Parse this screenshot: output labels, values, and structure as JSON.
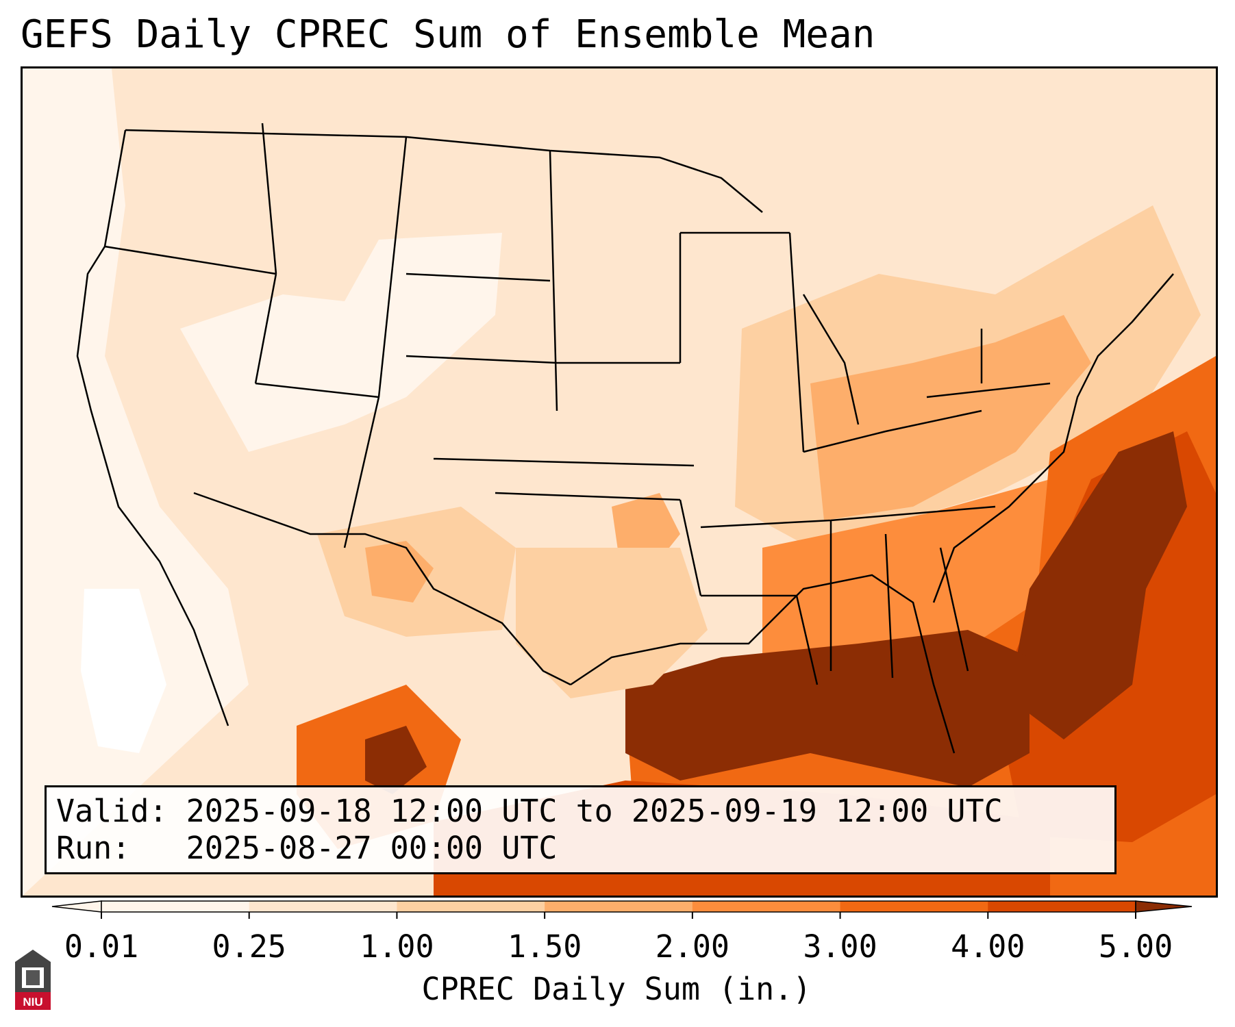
{
  "title": "GEFS Daily CPREC Sum of Ensemble Mean",
  "info": {
    "valid_line": "Valid: 2025-09-18 12:00 UTC to 2025-09-19 12:00 UTC",
    "run_line": "Run:   2025-08-27 00:00 UTC"
  },
  "colorbar": {
    "label": "CPREC Daily Sum (in.)",
    "ticks": [
      "0.01",
      "0.25",
      "1.00",
      "1.50",
      "2.00",
      "3.00",
      "4.00",
      "5.00"
    ],
    "colors": [
      "#fff5eb",
      "#fee6ce",
      "#fdd0a2",
      "#fdae6b",
      "#fd8d3c",
      "#f16913",
      "#d94801",
      "#8c2d04"
    ],
    "extend": "both"
  },
  "logo": {
    "text": "NIU",
    "icon": "niu-tower-icon"
  },
  "map": {
    "projection": "CONUS regional view",
    "field": "CPREC daily sum",
    "boundaries": "state and national borders"
  }
}
